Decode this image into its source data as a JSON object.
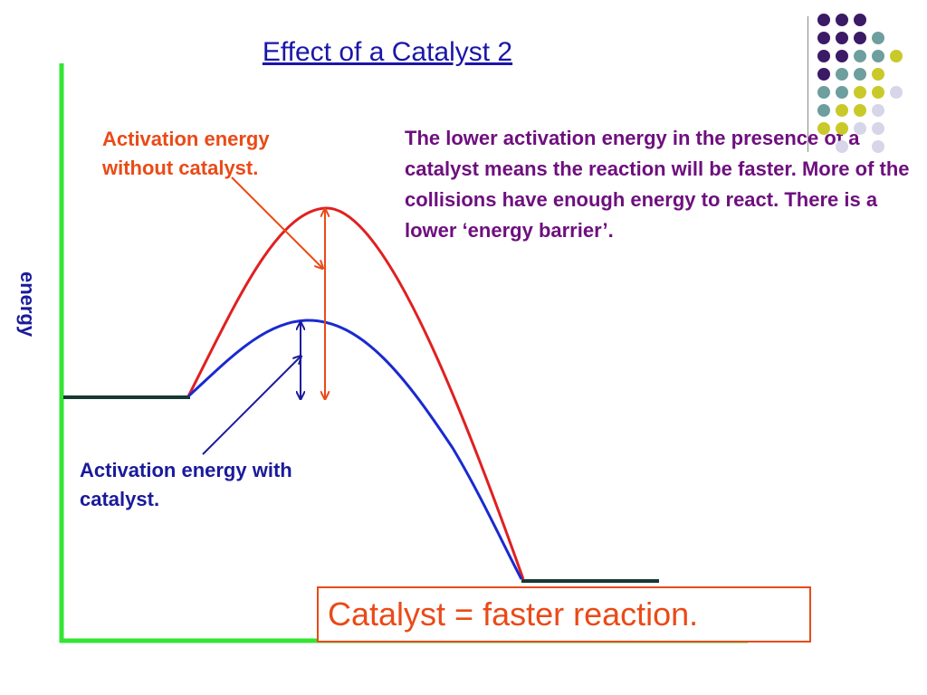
{
  "title": "Effect of a Catalyst 2",
  "y_axis_label": "energy",
  "labels": {
    "without_catalyst": "Activation energy without catalyst.",
    "with_catalyst": "Activation energy with catalyst."
  },
  "explanation": "The lower activation energy in the presence of a catalyst means the reaction will be faster. More of the collisions have enough energy to react. There is a lower ‘energy barrier’.",
  "conclusion": "Catalyst = faster reaction.",
  "colors": {
    "uncatalysed_curve": "#e02020",
    "catalysed_curve": "#1a2ad0",
    "axis": "#33e533",
    "energy_level": "#163a33",
    "red_annotation": "#ea4a17",
    "blue_annotation": "#1a1a9c",
    "explanation_text": "#6e0f7e",
    "title_text": "#1a16a8"
  },
  "dot_palette": [
    "#3b1a66",
    "#6e9e9e",
    "#c9c92a",
    "#d6d6e8"
  ]
}
